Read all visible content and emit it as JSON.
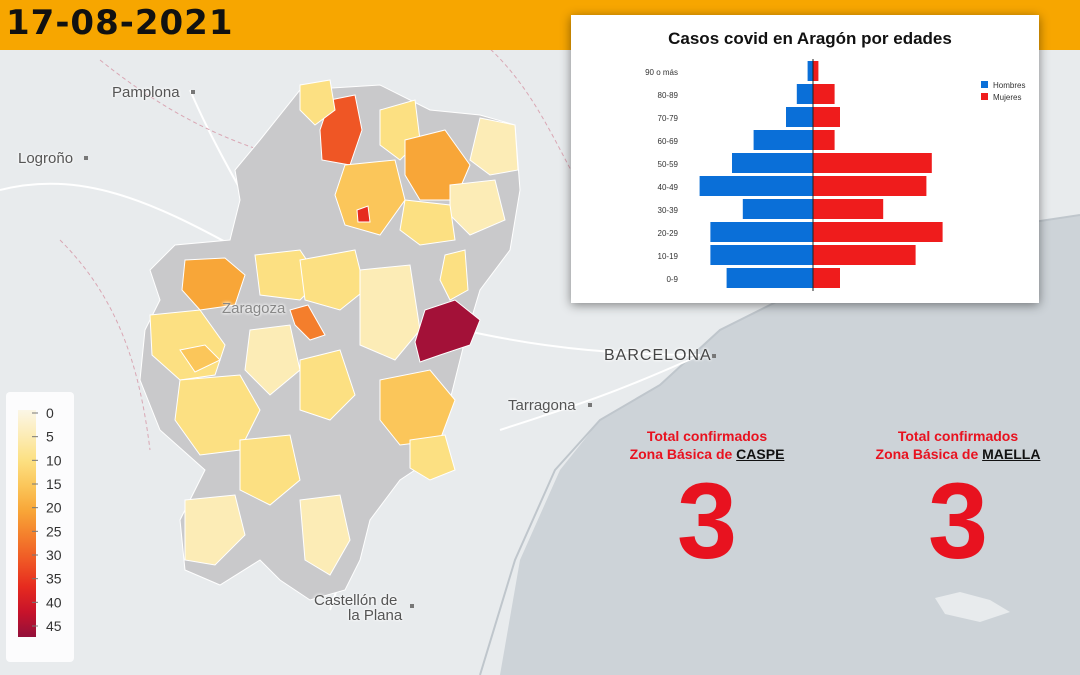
{
  "date": "17-08-2021",
  "colors": {
    "date_bar": "#f7a600",
    "hombres": "#0a6fd8",
    "mujeres": "#ef1c1c",
    "stat_red": "#e8121f",
    "zone_hot": "#a31138",
    "zone_grey": "#c9c9cb"
  },
  "cities": {
    "pamplona": "Pamplona",
    "logrono": "Logroño",
    "zaragoza": "Zaragoza",
    "barcelona": "BARCELONA",
    "tarragona": "Tarragona",
    "castellon_1": "Castellón de",
    "castellon_2": "la Plana"
  },
  "color_scale": {
    "ticks": [
      "0",
      "5",
      "10",
      "15",
      "20",
      "25",
      "30",
      "35",
      "40",
      "45"
    ],
    "colors": [
      "#fbf6e6",
      "#fcecb6",
      "#fce082",
      "#fbc65a",
      "#f8a638",
      "#f47e2c",
      "#ef5625",
      "#e62b1f",
      "#c8132a",
      "#93103a"
    ]
  },
  "chart_data": {
    "type": "bar",
    "title": "Casos covid en Aragón por edades",
    "categories": [
      "90 o más",
      "80-89",
      "70-79",
      "60-69",
      "50-59",
      "40-49",
      "30-39",
      "20-29",
      "10-19",
      "0-9"
    ],
    "series": [
      {
        "name": "Hombres",
        "values": [
          1,
          3,
          5,
          11,
          15,
          21,
          13,
          19,
          19,
          16
        ]
      },
      {
        "name": "Mujeres",
        "values": [
          1,
          4,
          5,
          4,
          22,
          21,
          13,
          24,
          19,
          5
        ]
      }
    ],
    "legend_position": "top-right",
    "grid": false
  },
  "stats": [
    {
      "line1": "Total confirmados",
      "line2_prefix": "Zona Básica de ",
      "zone": "CASPE",
      "value": "3"
    },
    {
      "line1": "Total confirmados",
      "line2_prefix": "Zona Básica de ",
      "zone": "MAELLA",
      "value": "3"
    }
  ]
}
